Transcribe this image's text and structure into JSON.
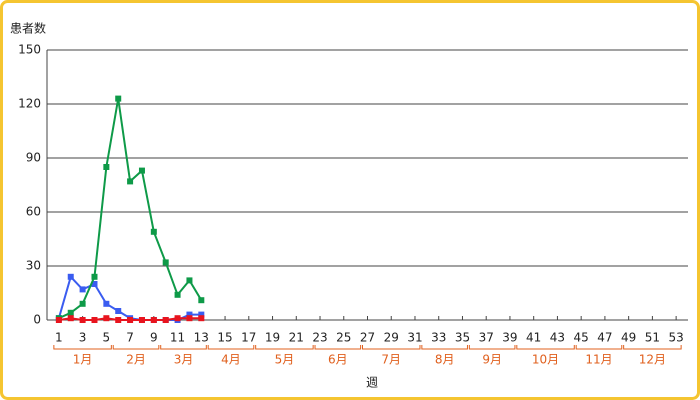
{
  "chart_data": {
    "type": "line",
    "y_label": "患者数",
    "x_label": "週",
    "x": [
      1,
      2,
      3,
      4,
      5,
      6,
      7,
      8,
      9,
      10,
      11,
      12,
      13
    ],
    "xlim": [
      0,
      54
    ],
    "xticks": [
      1,
      3,
      5,
      7,
      9,
      11,
      13,
      15,
      17,
      19,
      21,
      23,
      25,
      27,
      29,
      31,
      33,
      35,
      37,
      39,
      41,
      43,
      45,
      47,
      49,
      51,
      53
    ],
    "ylim": [
      0,
      150
    ],
    "yticks": [
      0,
      30,
      60,
      90,
      120,
      150
    ],
    "grid": true,
    "series": [
      {
        "color": "#3a5cf0",
        "values": [
          1,
          24,
          17,
          20,
          9,
          5,
          1,
          0,
          0,
          0,
          0,
          3,
          3
        ]
      },
      {
        "color": "#0e9a48",
        "values": [
          1,
          4,
          9,
          24,
          85,
          123,
          77,
          83,
          49,
          32,
          14,
          22,
          11
        ]
      },
      {
        "color": "#e8141e",
        "values": [
          0,
          1,
          0,
          0,
          1,
          0,
          0,
          0,
          0,
          0,
          1,
          1,
          1
        ]
      }
    ],
    "months": [
      {
        "label": "1月",
        "weeks": [
          1,
          5
        ]
      },
      {
        "label": "2月",
        "weeks": [
          6,
          9
        ]
      },
      {
        "label": "3月",
        "weeks": [
          10,
          13
        ]
      },
      {
        "label": "4月",
        "weeks": [
          14,
          17
        ]
      },
      {
        "label": "5月",
        "weeks": [
          18,
          22
        ]
      },
      {
        "label": "6月",
        "weeks": [
          23,
          26
        ]
      },
      {
        "label": "7月",
        "weeks": [
          27,
          31
        ]
      },
      {
        "label": "8月",
        "weeks": [
          32,
          35
        ]
      },
      {
        "label": "9月",
        "weeks": [
          36,
          39
        ]
      },
      {
        "label": "10月",
        "weeks": [
          40,
          44
        ]
      },
      {
        "label": "11月",
        "weeks": [
          45,
          48
        ]
      },
      {
        "label": "12月",
        "weeks": [
          49,
          53
        ]
      }
    ],
    "month_color": "#e0601e"
  }
}
